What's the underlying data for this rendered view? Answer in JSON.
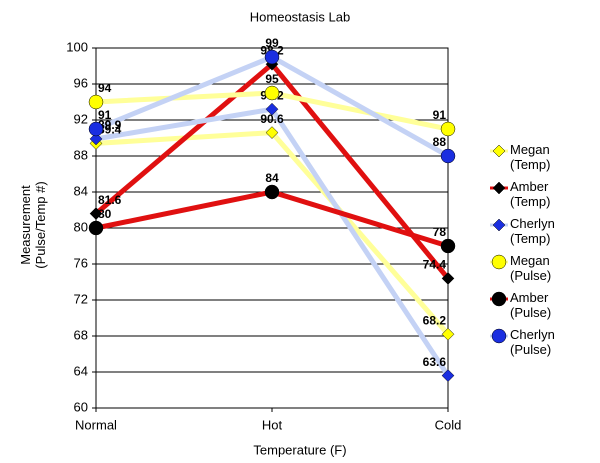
{
  "chart_data": {
    "type": "line",
    "title": "Homeostasis Lab",
    "x_label": "Temperature (F)",
    "y_label": "Measurement (Pulse/Temp #)",
    "categories": [
      "Normal",
      "Hot",
      "Cold"
    ],
    "ylim": [
      60,
      100
    ],
    "yticks": [
      60,
      64,
      68,
      72,
      76,
      80,
      84,
      88,
      92,
      96,
      100
    ],
    "grid": true,
    "legend": "right",
    "series": [
      {
        "name": "Megan (Temp)",
        "color": "#ffff00",
        "line_color": "#ffff99",
        "marker": "diamond",
        "values": [
          89.4,
          90.6,
          68.2
        ]
      },
      {
        "name": "Amber (Temp)",
        "color": "#000000",
        "line_color": "#e01010",
        "marker": "diamond",
        "values": [
          81.6,
          98.2,
          74.4
        ]
      },
      {
        "name": "Cherlyn (Temp)",
        "color": "#1a2ee0",
        "line_color": "#c4d2f5",
        "marker": "diamond",
        "values": [
          89.9,
          93.2,
          63.6
        ]
      },
      {
        "name": "Megan (Pulse)",
        "color": "#ffff00",
        "line_color": "#ffff99",
        "marker": "circle",
        "values": [
          94,
          95,
          91
        ]
      },
      {
        "name": "Amber (Pulse)",
        "color": "#000000",
        "line_color": "#e01010",
        "marker": "circle",
        "values": [
          80,
          84,
          78
        ]
      },
      {
        "name": "Cherlyn (Pulse)",
        "color": "#1a2ee0",
        "line_color": "#c4d2f5",
        "marker": "circle",
        "values": [
          91,
          99,
          88
        ]
      }
    ]
  }
}
